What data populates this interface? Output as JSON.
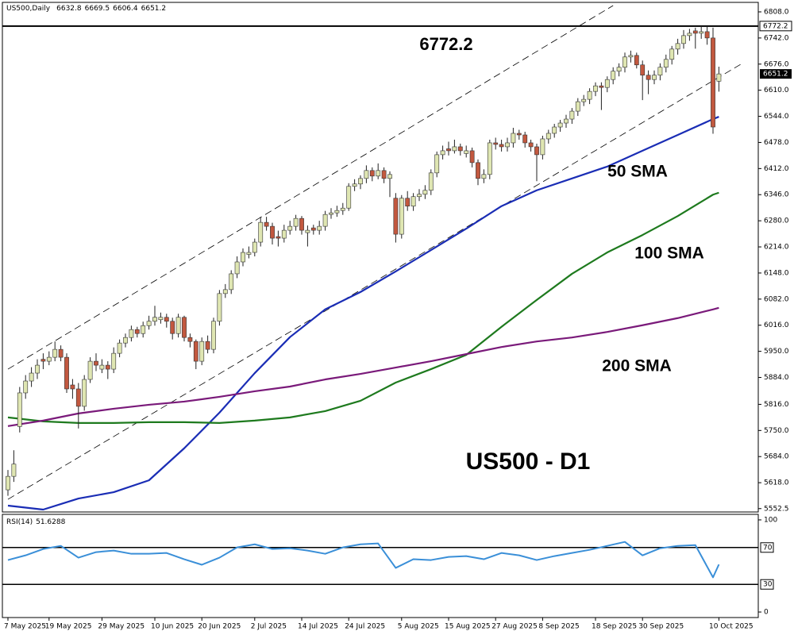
{
  "chart_data": [
    {
      "type": "candlestick",
      "symbol": "US500,Daily",
      "title": "US500 - D1",
      "up_color": "#dfe6b2",
      "down_color": "#c2583f",
      "categories": [
        "7 May 2025",
        null,
        null,
        null,
        null,
        null,
        null,
        "19 May 2025",
        null,
        null,
        null,
        null,
        null,
        null,
        null,
        null,
        "29 May 2025",
        null,
        null,
        null,
        null,
        null,
        null,
        null,
        null,
        "10 Jun 2025",
        null,
        null,
        null,
        null,
        null,
        null,
        null,
        "20 Jun 2025",
        null,
        null,
        null,
        null,
        null,
        null,
        null,
        null,
        "2 Jul 2025",
        null,
        null,
        null,
        null,
        null,
        null,
        null,
        "14 Jul 2025",
        null,
        null,
        null,
        null,
        null,
        null,
        null,
        "24 Jul 2025",
        null,
        null,
        null,
        null,
        null,
        null,
        null,
        null,
        "5 Aug 2025",
        null,
        null,
        null,
        null,
        null,
        null,
        null,
        "15 Aug 2025",
        null,
        null,
        null,
        null,
        null,
        null,
        null,
        "27 Aug 2025",
        null,
        null,
        null,
        null,
        null,
        null,
        null,
        "8 Sep 2025",
        null,
        null,
        null,
        null,
        null,
        null,
        null,
        null,
        "18 Sep 2025",
        null,
        null,
        null,
        null,
        null,
        null,
        null,
        "30 Sep 2025",
        null,
        null,
        null,
        null,
        null,
        null,
        null,
        null,
        null,
        null,
        null,
        null,
        "10 Oct 2025"
      ],
      "candles": [
        [
          5600,
          5650,
          5585,
          5634
        ],
        [
          5634,
          5700,
          5620,
          5665
        ],
        [
          5760,
          5860,
          5745,
          5845
        ],
        [
          5845,
          5890,
          5830,
          5875
        ],
        [
          5875,
          5910,
          5860,
          5895
        ],
        [
          5895,
          5930,
          5880,
          5915
        ],
        [
          5930,
          5945,
          5905,
          5925
        ],
        [
          5925,
          5950,
          5915,
          5935
        ],
        [
          5935,
          5975,
          5925,
          5955
        ],
        [
          5955,
          5965,
          5925,
          5935
        ],
        [
          5935,
          5945,
          5845,
          5855
        ],
        [
          5865,
          5880,
          5830,
          5855
        ],
        [
          5855,
          5870,
          5755,
          5811
        ],
        [
          5811,
          5890,
          5800,
          5879
        ],
        [
          5879,
          5935,
          5870,
          5925
        ],
        [
          5925,
          5945,
          5900,
          5915
        ],
        [
          5905,
          5930,
          5895,
          5915
        ],
        [
          5915,
          5925,
          5880,
          5905
        ],
        [
          5905,
          5960,
          5895,
          5945
        ],
        [
          5945,
          5980,
          5935,
          5971
        ],
        [
          5971,
          5995,
          5960,
          5985
        ],
        [
          5985,
          6015,
          5975,
          6005
        ],
        [
          6005,
          6012,
          5985,
          5995
        ],
        [
          5995,
          6025,
          5985,
          6015
        ],
        [
          6015,
          6040,
          6005,
          6026
        ],
        [
          6026,
          6065,
          6015,
          6036
        ],
        [
          6030,
          6048,
          6020,
          6036
        ],
        [
          6036,
          6045,
          6010,
          6026
        ],
        [
          6026,
          6035,
          5980,
          5995
        ],
        [
          5995,
          6045,
          5985,
          6036
        ],
        [
          6036,
          6040,
          5975,
          5985
        ],
        [
          5985,
          5995,
          5960,
          5975
        ],
        [
          5975,
          5980,
          5905,
          5925
        ],
        [
          5925,
          5985,
          5915,
          5975
        ],
        [
          5975,
          5990,
          5945,
          5955
        ],
        [
          5955,
          6035,
          5945,
          6026
        ],
        [
          6026,
          6105,
          6015,
          6096
        ],
        [
          6096,
          6120,
          6085,
          6106
        ],
        [
          6106,
          6155,
          6095,
          6146
        ],
        [
          6146,
          6190,
          6135,
          6176
        ],
        [
          6176,
          6210,
          6165,
          6200
        ],
        [
          6195,
          6215,
          6185,
          6200
        ],
        [
          6200,
          6235,
          6190,
          6226
        ],
        [
          6226,
          6290,
          6215,
          6276
        ],
        [
          6276,
          6290,
          6255,
          6266
        ],
        [
          6266,
          6275,
          6220,
          6236
        ],
        [
          6240,
          6255,
          6215,
          6236
        ],
        [
          6236,
          6270,
          6225,
          6256
        ],
        [
          6256,
          6280,
          6245,
          6266
        ],
        [
          6266,
          6295,
          6255,
          6286
        ],
        [
          6286,
          6292,
          6245,
          6256
        ],
        [
          6250,
          6268,
          6215,
          6256
        ],
        [
          6262,
          6270,
          6245,
          6256
        ],
        [
          6256,
          6280,
          6245,
          6266
        ],
        [
          6266,
          6305,
          6255,
          6296
        ],
        [
          6296,
          6312,
          6285,
          6300
        ],
        [
          6300,
          6318,
          6290,
          6306
        ],
        [
          6306,
          6325,
          6295,
          6312
        ],
        [
          6312,
          6375,
          6305,
          6367
        ],
        [
          6367,
          6385,
          6355,
          6373
        ],
        [
          6373,
          6395,
          6360,
          6387
        ],
        [
          6387,
          6420,
          6375,
          6407
        ],
        [
          6407,
          6415,
          6380,
          6393
        ],
        [
          6393,
          6425,
          6385,
          6407
        ],
        [
          6407,
          6415,
          6375,
          6387
        ],
        [
          6387,
          6405,
          6340,
          6397
        ],
        [
          6337,
          6350,
          6225,
          6246
        ],
        [
          6246,
          6345,
          6235,
          6337
        ],
        [
          6337,
          6355,
          6305,
          6317
        ],
        [
          6317,
          6350,
          6305,
          6341
        ],
        [
          6341,
          6360,
          6330,
          6347
        ],
        [
          6347,
          6370,
          6335,
          6357
        ],
        [
          6357,
          6410,
          6345,
          6401
        ],
        [
          6401,
          6455,
          6390,
          6447
        ],
        [
          6447,
          6470,
          6435,
          6457
        ],
        [
          6462,
          6480,
          6445,
          6457
        ],
        [
          6457,
          6485,
          6450,
          6467
        ],
        [
          6467,
          6475,
          6445,
          6457
        ],
        [
          6450,
          6470,
          6440,
          6457
        ],
        [
          6457,
          6465,
          6415,
          6427
        ],
        [
          6427,
          6435,
          6370,
          6387
        ],
        [
          6387,
          6410,
          6375,
          6397
        ],
        [
          6397,
          6485,
          6385,
          6477
        ],
        [
          6477,
          6490,
          6460,
          6473
        ],
        [
          6473,
          6485,
          6455,
          6467
        ],
        [
          6467,
          6490,
          6455,
          6477
        ],
        [
          6477,
          6515,
          6465,
          6501
        ],
        [
          6501,
          6510,
          6485,
          6497
        ],
        [
          6497,
          6505,
          6465,
          6477
        ],
        [
          6477,
          6485,
          6455,
          6467
        ],
        [
          6467,
          6475,
          6380,
          6447
        ],
        [
          6447,
          6495,
          6435,
          6487
        ],
        [
          6487,
          6510,
          6475,
          6501
        ],
        [
          6501,
          6525,
          6490,
          6517
        ],
        [
          6517,
          6535,
          6505,
          6527
        ],
        [
          6527,
          6548,
          6515,
          6537
        ],
        [
          6537,
          6565,
          6525,
          6557
        ],
        [
          6557,
          6590,
          6545,
          6581
        ],
        [
          6581,
          6598,
          6570,
          6587
        ],
        [
          6587,
          6615,
          6575,
          6607
        ],
        [
          6607,
          6630,
          6595,
          6621
        ],
        [
          6621,
          6630,
          6560,
          6617
        ],
        [
          6617,
          6645,
          6605,
          6637
        ],
        [
          6637,
          6668,
          6625,
          6658
        ],
        [
          6658,
          6678,
          6645,
          6668
        ],
        [
          6668,
          6705,
          6655,
          6694
        ],
        [
          6694,
          6710,
          6680,
          6698
        ],
        [
          6698,
          6705,
          6665,
          6674
        ],
        [
          6674,
          6685,
          6585,
          6648
        ],
        [
          6648,
          6660,
          6600,
          6637
        ],
        [
          6637,
          6660,
          6625,
          6648
        ],
        [
          6648,
          6678,
          6635,
          6668
        ],
        [
          6668,
          6700,
          6655,
          6688
        ],
        [
          6688,
          6722,
          6675,
          6714
        ],
        [
          6714,
          6740,
          6700,
          6728
        ],
        [
          6728,
          6762,
          6715,
          6748
        ],
        [
          6748,
          6765,
          6735,
          6754
        ],
        [
          6760,
          6768,
          6715,
          6754
        ],
        [
          6754,
          6772.2,
          6740,
          6758
        ],
        [
          6758,
          6770,
          6725,
          6742
        ],
        [
          6742,
          6768,
          6500,
          6517
        ],
        [
          6632.8,
          6669.5,
          6606.4,
          6651.2
        ]
      ],
      "ylim": [
        5544,
        6828
      ],
      "yticks": [
        {
          "value": 6808,
          "label": "6808.0"
        },
        {
          "value": 6742,
          "label": "6742.0"
        },
        {
          "value": 6676,
          "label": "6676.0"
        },
        {
          "value": 6610,
          "label": "6610.0"
        },
        {
          "value": 6544,
          "label": "6544.0"
        },
        {
          "value": 6478,
          "label": "6478.0"
        },
        {
          "value": 6412,
          "label": "6412.0"
        },
        {
          "value": 6346,
          "label": "6346.0"
        },
        {
          "value": 6280,
          "label": "6280.0"
        },
        {
          "value": 6214,
          "label": "6214.0"
        },
        {
          "value": 6148,
          "label": "6148.0"
        },
        {
          "value": 6082,
          "label": "6082.0"
        },
        {
          "value": 6016,
          "label": "6016.0"
        },
        {
          "value": 5950,
          "label": "5950.0"
        },
        {
          "value": 5884,
          "label": "5884.0"
        },
        {
          "value": 5816,
          "label": "5816.0"
        },
        {
          "value": 5750,
          "label": "5750.0"
        },
        {
          "value": 5684,
          "label": "5684.0"
        },
        {
          "value": 5618,
          "label": "5618.0"
        },
        5552.5
      ],
      "level": 6772.2,
      "series": [
        {
          "name": "50 SMA",
          "color": "#1a2db5",
          "x": [
            0,
            6,
            12,
            18,
            24,
            30,
            36,
            42,
            48,
            54,
            60,
            66,
            72,
            78,
            84,
            90,
            96,
            102,
            108,
            114,
            120,
            121
          ],
          "values": [
            5560,
            5550,
            5578,
            5594,
            5624,
            5705,
            5795,
            5895,
            5986,
            6056,
            6100,
            6152,
            6206,
            6260,
            6317,
            6357,
            6387,
            6417,
            6457,
            6497,
            6537,
            6543
          ]
        },
        {
          "name": "100 SMA",
          "color": "#1e7a1e",
          "x": [
            0,
            6,
            12,
            18,
            24,
            30,
            36,
            42,
            48,
            54,
            60,
            66,
            72,
            78,
            84,
            90,
            96,
            102,
            108,
            114,
            120,
            121
          ],
          "values": [
            5783,
            5773,
            5769,
            5769,
            5771,
            5771,
            5769,
            5775,
            5783,
            5799,
            5825,
            5871,
            5905,
            5941,
            6012,
            6080,
            6146,
            6200,
            6244,
            6292,
            6346,
            6351
          ]
        },
        {
          "name": "200 SMA",
          "color": "#7a1a7a",
          "x": [
            0,
            6,
            12,
            18,
            24,
            30,
            36,
            42,
            48,
            54,
            60,
            66,
            72,
            78,
            84,
            90,
            96,
            102,
            108,
            114,
            120,
            121
          ],
          "values": [
            5761,
            5775,
            5793,
            5805,
            5815,
            5823,
            5835,
            5849,
            5861,
            5879,
            5893,
            5909,
            5925,
            5943,
            5961,
            5975,
            5985,
            5999,
            6016,
            6034,
            6056,
            6060
          ]
        }
      ],
      "trendlines": [
        {
          "x": [
            0,
            103
          ],
          "values": [
            5905,
            6824
          ]
        },
        {
          "x": [
            0,
            125
          ],
          "values": [
            5576,
            6678
          ]
        }
      ]
    },
    {
      "type": "line",
      "name": "RSI(14)",
      "color": "#3a8fd8",
      "x": [
        0,
        3,
        6,
        9,
        12,
        15,
        18,
        21,
        24,
        27,
        30,
        33,
        36,
        39,
        42,
        45,
        48,
        51,
        54,
        57,
        60,
        63,
        66,
        69,
        72,
        75,
        78,
        81,
        84,
        87,
        90,
        93,
        96,
        99,
        102,
        105,
        108,
        111,
        114,
        117,
        120,
        121
      ],
      "values": [
        56.4,
        61.5,
        68.4,
        71.8,
        59.0,
        65.0,
        66.7,
        63.2,
        63.2,
        64.1,
        57.3,
        51.3,
        59.0,
        70.1,
        73.5,
        68.4,
        69.2,
        66.7,
        63.2,
        70.1,
        73.5,
        74.4,
        47.9,
        57.3,
        56.4,
        59.8,
        60.7,
        57.3,
        64.1,
        61.5,
        56.4,
        60.7,
        64.1,
        67.5,
        71.8,
        76.1,
        61.5,
        69.2,
        71.8,
        72.6,
        37.6,
        51.6288
      ],
      "ylim": [
        -6,
        106
      ],
      "yticks": [
        100,
        0
      ],
      "levels": [
        70,
        30
      ]
    }
  ]
}
